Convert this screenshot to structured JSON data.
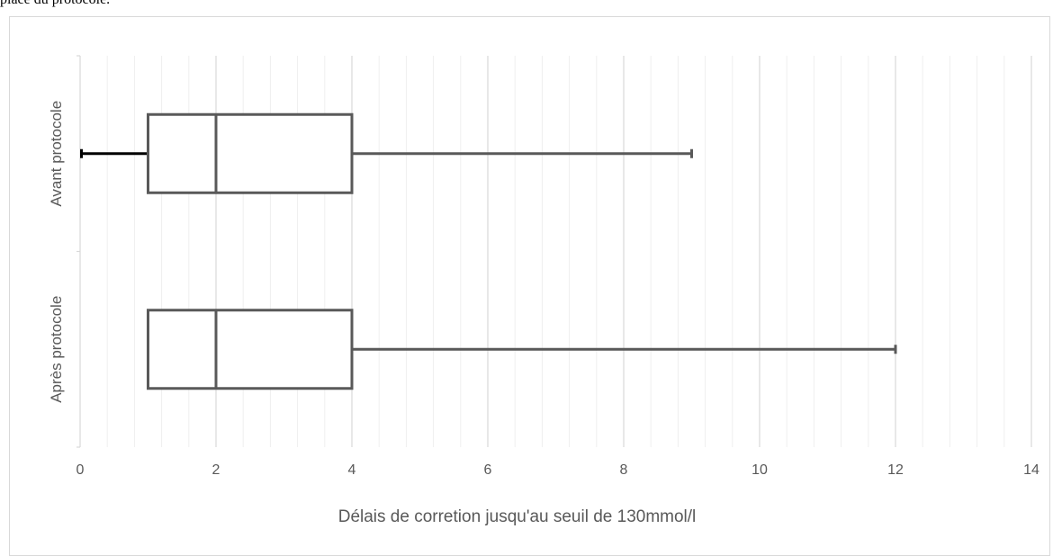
{
  "caption": "place du protocole.",
  "chart_data": {
    "type": "box",
    "orientation": "horizontal",
    "xlabel": "Délais de corretion jusqu'au seuil de 130mmol/l",
    "ylabel": "",
    "xlim": [
      0,
      14
    ],
    "major_ticks": [
      0,
      2,
      4,
      6,
      8,
      10,
      12,
      14
    ],
    "minor_step": 0.4,
    "grid": true,
    "categories": [
      "Avant protocole",
      "Après protocole"
    ],
    "series": [
      {
        "category": "Avant protocole",
        "min": 0,
        "q1": 1,
        "median": 2,
        "q3": 4,
        "max": 9
      },
      {
        "category": "Après protocole",
        "min": 1,
        "q1": 1,
        "median": 2,
        "q3": 4,
        "max": 12
      }
    ],
    "colors": {
      "box": "#595959",
      "whisker_low": "#000000",
      "grid_major": "#d9d9d9",
      "grid_minor": "#efefef",
      "text": "#595959"
    }
  }
}
